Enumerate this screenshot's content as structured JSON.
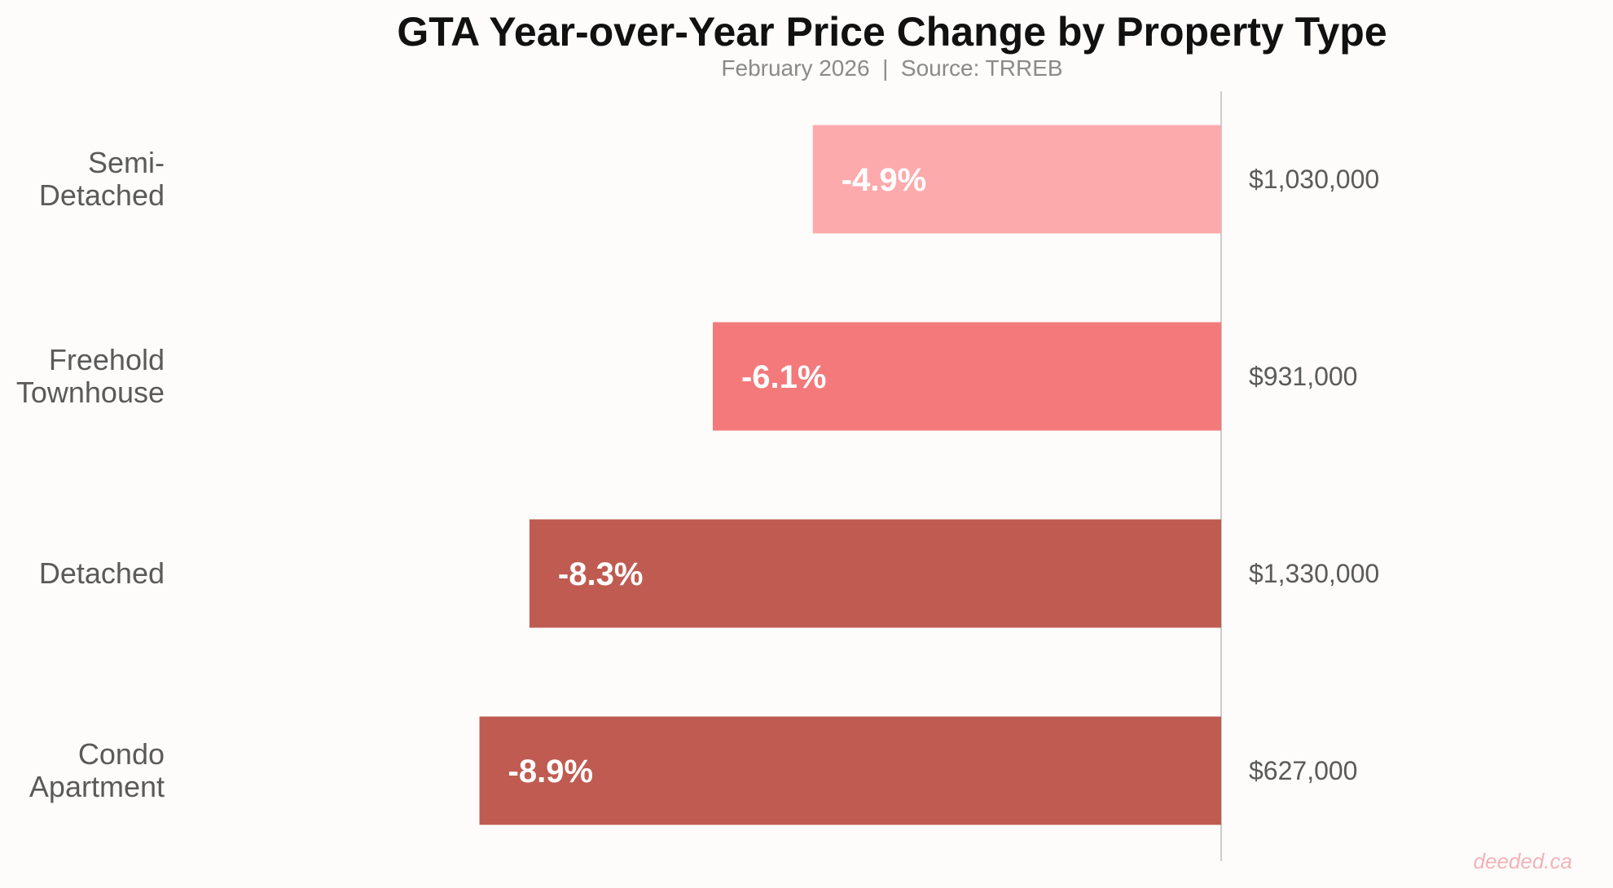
{
  "chart_data": {
    "type": "bar",
    "orientation": "horizontal",
    "title": "GTA Year-over-Year Price Change by Property Type",
    "subtitle": "February 2026  |  Source: TRREB",
    "xlabel": "",
    "ylabel": "",
    "xlim": [
      -10,
      0
    ],
    "grid": false,
    "categories": [
      [
        "Semi-",
        "Detached"
      ],
      [
        "Freehold",
        "Townhouse"
      ],
      [
        "Detached"
      ],
      [
        "Condo",
        "Apartment"
      ]
    ],
    "values": [
      -4.9,
      -6.1,
      -8.3,
      -8.9
    ],
    "value_labels": [
      "-4.9%",
      "-6.1%",
      "-8.3%",
      "-8.9%"
    ],
    "price_labels": [
      "$1,030,000",
      "$931,000",
      "$1,330,000",
      "$627,000"
    ],
    "bar_colors": [
      "#fdaaad",
      "#f3797b",
      "#c05b51",
      "#c05b51"
    ],
    "watermark": "deeded.ca"
  }
}
